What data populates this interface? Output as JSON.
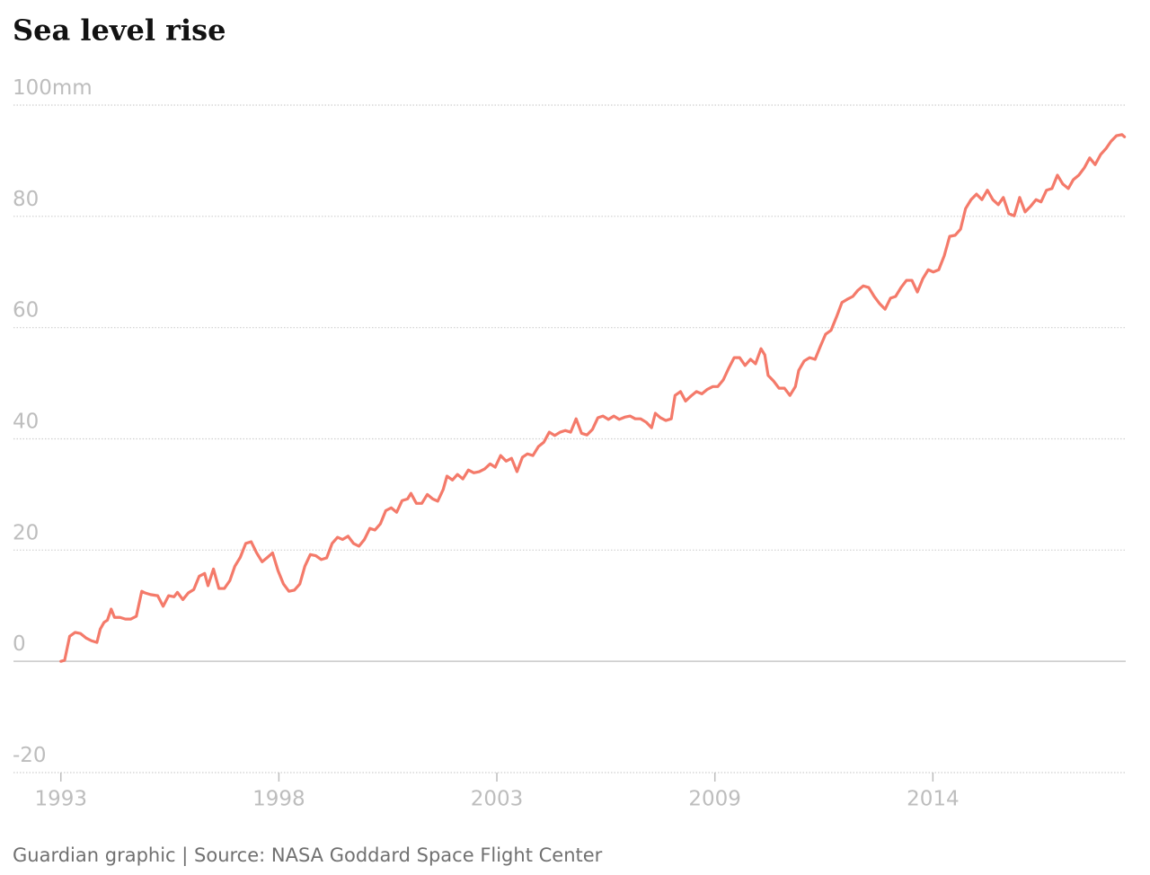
{
  "chart_data": {
    "type": "line",
    "title": "Sea level rise",
    "source": "Guardian graphic | Source: NASA Goddard Space Flight Center",
    "xlim": [
      1991.87,
      2018.4
    ],
    "xticks": [
      1993,
      {
        "value": 1998.2,
        "label": "1998"
      },
      {
        "value": 2003.4,
        "label": "2003"
      },
      {
        "value": 2008.6,
        "label": "2009"
      },
      {
        "value": 2013.8,
        "label": "2014"
      }
    ],
    "ylim": [
      -20,
      100
    ],
    "yticks": [
      -20,
      0,
      20,
      40,
      60,
      80,
      {
        "value": 100,
        "label": "100mm"
      }
    ],
    "grid": true,
    "series": [
      {
        "color": "#f47a6a",
        "x": [
          1993,
          1993.09,
          1993.21,
          1993.34,
          1993.47,
          1993.6,
          1993.73,
          1993.86,
          1993.94,
          1994.03,
          1994.11,
          1994.2,
          1994.28,
          1994.41,
          1994.54,
          1994.67,
          1994.8,
          1994.93,
          1995.01,
          1995.14,
          1995.31,
          1995.44,
          1995.57,
          1995.7,
          1995.78,
          1995.91,
          1996.04,
          1996.17,
          1996.3,
          1996.43,
          1996.51,
          1996.64,
          1996.77,
          1996.9,
          1997.03,
          1997.15,
          1997.28,
          1997.41,
          1997.54,
          1997.67,
          1997.8,
          1997.93,
          1998.05,
          1998.18,
          1998.31,
          1998.44,
          1998.57,
          1998.7,
          1998.82,
          1998.95,
          1999.08,
          1999.21,
          1999.34,
          1999.47,
          1999.6,
          1999.72,
          1999.85,
          1999.98,
          2000.11,
          2000.24,
          2000.37,
          2000.49,
          2000.62,
          2000.75,
          2000.88,
          2001.01,
          2001.14,
          2001.27,
          2001.35,
          2001.48,
          2001.61,
          2001.74,
          2001.87,
          2001.99,
          2002.12,
          2002.21,
          2002.34,
          2002.46,
          2002.59,
          2002.72,
          2002.85,
          2002.98,
          2003.11,
          2003.24,
          2003.36,
          2003.49,
          2003.62,
          2003.75,
          2003.88,
          2004.01,
          2004.13,
          2004.26,
          2004.39,
          2004.52,
          2004.65,
          2004.78,
          2004.91,
          2005.03,
          2005.16,
          2005.29,
          2005.42,
          2005.55,
          2005.68,
          2005.81,
          2005.93,
          2006.06,
          2006.19,
          2006.32,
          2006.45,
          2006.58,
          2006.7,
          2006.83,
          2006.96,
          2007.09,
          2007.18,
          2007.3,
          2007.43,
          2007.56,
          2007.65,
          2007.78,
          2007.9,
          2008.03,
          2008.16,
          2008.29,
          2008.42,
          2008.55,
          2008.67,
          2008.8,
          2008.93,
          2009.06,
          2009.19,
          2009.32,
          2009.45,
          2009.57,
          2009.7,
          2009.79,
          2009.87,
          2010,
          2010.13,
          2010.26,
          2010.39,
          2010.52,
          2010.6,
          2010.73,
          2010.86,
          2010.99,
          2011.12,
          2011.24,
          2011.37,
          2011.5,
          2011.63,
          2011.76,
          2011.89,
          2012.01,
          2012.14,
          2012.27,
          2012.4,
          2012.53,
          2012.66,
          2012.79,
          2012.91,
          2013.04,
          2013.17,
          2013.3,
          2013.43,
          2013.56,
          2013.69,
          2013.81,
          2013.94,
          2014.07,
          2014.2,
          2014.33,
          2014.46,
          2014.58,
          2014.71,
          2014.84,
          2014.97,
          2015.1,
          2015.23,
          2015.36,
          2015.48,
          2015.61,
          2015.74,
          2015.87,
          2016,
          2016.13,
          2016.26,
          2016.38,
          2016.51,
          2016.64,
          2016.77,
          2016.9,
          2017.03,
          2017.15,
          2017.28,
          2017.41,
          2017.54,
          2017.67,
          2017.8,
          2017.93,
          2018.05,
          2018.18,
          2018.31,
          2018.37
        ],
        "values": [
          0,
          0.2,
          4.5,
          5.2,
          5,
          4.2,
          3.7,
          3.4,
          5.8,
          7,
          7.4,
          9.4,
          7.9,
          7.9,
          7.6,
          7.6,
          8.1,
          12.6,
          12.3,
          12,
          11.8,
          9.9,
          11.8,
          11.6,
          12.4,
          11.1,
          12.3,
          12.9,
          15.3,
          15.8,
          13.6,
          16.6,
          13.1,
          13.1,
          14.5,
          17.1,
          18.7,
          21.2,
          21.5,
          19.5,
          17.9,
          18.7,
          19.5,
          16.3,
          13.9,
          12.6,
          12.8,
          13.9,
          17.1,
          19.2,
          19,
          18.3,
          18.6,
          21.2,
          22.3,
          21.9,
          22.5,
          21.2,
          20.7,
          21.9,
          23.9,
          23.6,
          24.7,
          27.1,
          27.6,
          26.8,
          28.9,
          29.2,
          30.2,
          28.4,
          28.4,
          30,
          29.2,
          28.8,
          30.9,
          33.3,
          32.6,
          33.6,
          32.8,
          34.4,
          33.9,
          34.1,
          34.6,
          35.5,
          34.9,
          37,
          36,
          36.5,
          34.1,
          36.7,
          37.3,
          37,
          38.6,
          39.4,
          41.2,
          40.6,
          41.2,
          41.5,
          41.2,
          43.6,
          41,
          40.7,
          41.7,
          43.8,
          44.1,
          43.5,
          44.1,
          43.5,
          43.9,
          44.1,
          43.6,
          43.6,
          43,
          42,
          44.6,
          43.8,
          43.3,
          43.6,
          47.8,
          48.5,
          46.8,
          47.7,
          48.5,
          48.1,
          48.9,
          49.4,
          49.4,
          50.6,
          52.7,
          54.6,
          54.6,
          53.2,
          54.3,
          53.5,
          56.2,
          55.1,
          51.4,
          50.4,
          49.1,
          49.1,
          47.8,
          49.4,
          52.3,
          54,
          54.6,
          54.3,
          56.7,
          58.8,
          59.5,
          61.9,
          64.5,
          65.1,
          65.6,
          66.7,
          67.5,
          67.2,
          65.6,
          64.3,
          63.3,
          65.3,
          65.6,
          67.2,
          68.5,
          68.5,
          66.4,
          68.8,
          70.4,
          70,
          70.4,
          72.9,
          76.4,
          76.6,
          77.7,
          81.4,
          83,
          84,
          83,
          84.7,
          83,
          82.1,
          83.4,
          80.5,
          80.1,
          83.4,
          80.8,
          81.8,
          83,
          82.6,
          84.7,
          85,
          87.4,
          85.8,
          85,
          86.6,
          87.4,
          88.7,
          90.5,
          89.3,
          91.1,
          92.2,
          93.5,
          94.5,
          94.7,
          94.3
        ]
      }
    ]
  }
}
